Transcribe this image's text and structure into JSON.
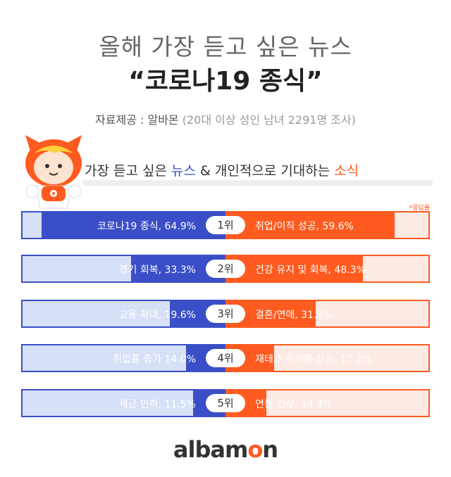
{
  "header": {
    "title_line1": "올해 가장 듣고 싶은 뉴스",
    "title_line2": "“코로나19 종식”",
    "source_label": "자료제공 : 알바몬",
    "source_detail": "(20대 이상 성인 남녀 2291명 조사)"
  },
  "subtitle": {
    "part1": "가장 듣고 싶은 ",
    "news_word": "뉴스",
    "part2": " & 개인적으로 기대하는 ",
    "good_news_word": "소식"
  },
  "note": "*응답률",
  "brand": {
    "part1": "albam",
    "o": "o",
    "part2": "n"
  },
  "colors": {
    "news_blue": "#3a4fc7",
    "news_blue_light": "#d6e0f7",
    "hope_orange": "#ff5a1f",
    "hope_orange_light": "#fdeae4"
  },
  "chart_data": {
    "type": "bar",
    "unit": "%",
    "series": [
      {
        "name": "가장 듣고 싶은 뉴스",
        "categories": [
          "코로나19 종식",
          "경기 회복",
          "고용 확대",
          "취업률 증가",
          "세금 인하"
        ],
        "values": [
          64.9,
          33.3,
          19.6,
          14.0,
          11.5
        ],
        "labels": [
          "코로나19 종식, 64.9%",
          "경기 회복, 33.3%",
          "고용 확대, 19.6%",
          "취업률 증가 14.0%",
          "세금 인하, 11.5%"
        ]
      },
      {
        "name": "개인적으로 기대하는 소식",
        "categories": [
          "취업/이직 성공",
          "건강 유지 및 회복",
          "결혼/연애",
          "재테크 수익률 상승",
          "연봉 인상"
        ],
        "values": [
          59.6,
          48.3,
          31.8,
          17.2,
          14.4
        ],
        "labels": [
          "취업/이직 성공, 59.6%",
          "건강 유지 및 회복, 48.3%",
          "결혼/연애, 31.8%",
          "재테크 수익률 상승, 17.2%",
          "연봉 인상, 14.4%"
        ]
      }
    ],
    "ranks": [
      "1위",
      "2위",
      "3위",
      "4위",
      "5위"
    ]
  }
}
